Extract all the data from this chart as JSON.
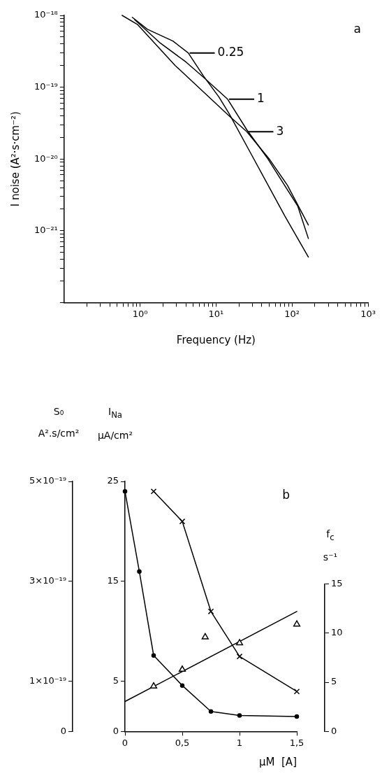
{
  "chart_data": [
    {
      "type": "line",
      "xlabel": "Frequency (Hz)",
      "ylabel": "I noise (A²·s·cm⁻²)",
      "log": "xy",
      "xlim": [
        0.1,
        1000
      ],
      "ylim": [
        1e-22,
        1e-18
      ],
      "xticks": [
        {
          "value": 0.2,
          "label": null
        },
        {
          "value": 0.3,
          "label": null
        },
        {
          "value": 0.4,
          "label": null
        },
        {
          "value": 0.5,
          "label": null
        },
        {
          "value": 0.6,
          "label": null
        },
        {
          "value": 0.7,
          "label": null
        },
        {
          "value": 0.8,
          "label": null
        },
        {
          "value": 0.9,
          "label": null
        },
        {
          "value": 1,
          "label": "10⁰"
        },
        {
          "value": 2,
          "label": null
        },
        {
          "value": 3,
          "label": null
        },
        {
          "value": 4,
          "label": null
        },
        {
          "value": 5,
          "label": null
        },
        {
          "value": 6,
          "label": null
        },
        {
          "value": 7,
          "label": null
        },
        {
          "value": 8,
          "label": null
        },
        {
          "value": 9,
          "label": null
        },
        {
          "value": 10,
          "label": "10¹"
        },
        {
          "value": 20,
          "label": null
        },
        {
          "value": 30,
          "label": null
        },
        {
          "value": 40,
          "label": null
        },
        {
          "value": 50,
          "label": null
        },
        {
          "value": 60,
          "label": null
        },
        {
          "value": 70,
          "label": null
        },
        {
          "value": 80,
          "label": null
        },
        {
          "value": 90,
          "label": null
        },
        {
          "value": 100,
          "label": "10²"
        },
        {
          "value": 200,
          "label": null
        },
        {
          "value": 300,
          "label": null
        },
        {
          "value": 400,
          "label": null
        },
        {
          "value": 500,
          "label": null
        },
        {
          "value": 600,
          "label": null
        },
        {
          "value": 700,
          "label": null
        },
        {
          "value": 800,
          "label": null
        },
        {
          "value": 900,
          "label": null
        },
        {
          "value": 1000,
          "label": "10³"
        }
      ],
      "yticks": [
        {
          "value": 1e-22,
          "label": null
        },
        {
          "value": 2e-22,
          "label": null
        },
        {
          "value": 3e-22,
          "label": null
        },
        {
          "value": 4e-22,
          "label": null
        },
        {
          "value": 5e-22,
          "label": null
        },
        {
          "value": 6e-22,
          "label": null
        },
        {
          "value": 7e-22,
          "label": null
        },
        {
          "value": 8e-22,
          "label": null
        },
        {
          "value": 9e-22,
          "label": null
        },
        {
          "value": 1e-21,
          "label": "10⁻²¹"
        },
        {
          "value": 2e-21,
          "label": null
        },
        {
          "value": 3e-21,
          "label": null
        },
        {
          "value": 4e-21,
          "label": null
        },
        {
          "value": 5e-21,
          "label": null
        },
        {
          "value": 6e-21,
          "label": null
        },
        {
          "value": 7e-21,
          "label": null
        },
        {
          "value": 8e-21,
          "label": null
        },
        {
          "value": 9e-21,
          "label": null
        },
        {
          "value": 1e-20,
          "label": "10⁻²⁰"
        },
        {
          "value": 2e-20,
          "label": null
        },
        {
          "value": 3e-20,
          "label": null
        },
        {
          "value": 4e-20,
          "label": null
        },
        {
          "value": 5e-20,
          "label": null
        },
        {
          "value": 6e-20,
          "label": null
        },
        {
          "value": 7e-20,
          "label": null
        },
        {
          "value": 8e-20,
          "label": null
        },
        {
          "value": 9e-20,
          "label": null
        },
        {
          "value": 1e-19,
          "label": "10⁻¹⁹"
        },
        {
          "value": 2e-19,
          "label": null
        },
        {
          "value": 3e-19,
          "label": null
        },
        {
          "value": 4e-19,
          "label": null
        },
        {
          "value": 5e-19,
          "label": null
        },
        {
          "value": 6e-19,
          "label": null
        },
        {
          "value": 7e-19,
          "label": null
        },
        {
          "value": 8e-19,
          "label": null
        },
        {
          "value": 9e-19,
          "label": null
        },
        {
          "value": 1e-18,
          "label": "10⁻¹⁸"
        }
      ],
      "annotations": [
        "a",
        {
          "text": "0.25",
          "x": 4.3,
          "y": 3e-19
        },
        {
          "text": "1",
          "x": 14.2,
          "y": 6.8e-20
        },
        {
          "text": "3",
          "x": 25.4,
          "y": 2.4e-20
        }
      ],
      "series": [
        {
          "color": "#000000",
          "x": [
            0.79,
            1.25,
            2.7,
            4.3,
            6.8,
            10.9,
            14.8,
            29.5,
            80.5,
            164
          ],
          "values": [
            9.4e-19,
            6.4e-19,
            4.4e-19,
            3e-19,
            1.44e-19,
            7.3e-20,
            4.3e-20,
            1.13e-20,
            1.6e-21,
            4.3e-22
          ]
        },
        {
          "color": "#000000",
          "x": [
            0.85,
            1.85,
            4.0,
            6.8,
            14.2,
            25.4,
            47,
            119,
            164
          ],
          "values": [
            8.7e-19,
            4.1e-19,
            2.25e-19,
            1.38e-19,
            6.8e-20,
            2.55e-20,
            1.04e-20,
            2.2e-21,
            7.8e-22
          ]
        },
        {
          "color": "#000000",
          "x": [
            0.58,
            0.92,
            2.9,
            14.8,
            25.4,
            50.8,
            87,
            164
          ],
          "values": [
            1e-18,
            7.5e-19,
            2e-19,
            4e-20,
            2.4e-20,
            9.8e-21,
            4.3e-21,
            1.2e-21
          ]
        }
      ]
    },
    {
      "type": "line",
      "xlabel": "μM  [A]",
      "ylabel": "I$_{Na}$ μA/cm²",
      "y2label": "f$_{c}$ s⁻¹",
      "y3label": "S₀ A².s/cm²",
      "xlim": [
        0,
        1.5
      ],
      "xticks": [
        0,
        {
          "value": 0.5,
          "label": "0,5"
        },
        1,
        {
          "value": 1.5,
          "label": "1,5"
        }
      ],
      "ylim": [
        0,
        25
      ],
      "yticks": [
        0,
        5,
        15,
        25
      ],
      "y2lim": [
        0,
        15
      ],
      "y2ticks": [
        0,
        5,
        10,
        15
      ],
      "y3lim": [
        0,
        5e-19
      ],
      "y3ticks": [
        0,
        {
          "value": 1e-19,
          "label": "1×10⁻¹⁹"
        },
        {
          "value": 3e-19,
          "label": "3×10⁻¹⁹"
        },
        {
          "value": 5e-19,
          "label": "5×10⁻¹⁹"
        }
      ],
      "annotations": [
        "b"
      ],
      "series": [
        {
          "axis": "y",
          "marker": "circle",
          "color": "#000000",
          "x": [
            0,
            0.125,
            0.25,
            0.5,
            0.75,
            1,
            1.5
          ],
          "values": [
            24,
            16,
            7.6,
            4.6,
            2.0,
            1.6,
            1.5
          ]
        },
        {
          "axis": "y3",
          "marker": "cross",
          "color": "#000000",
          "x": [
            0.25,
            0.5,
            0.75,
            1,
            1.5
          ],
          "values": [
            4.8e-19,
            4.2e-19,
            2.4e-19,
            1.5e-19,
            8e-20
          ]
        },
        {
          "type": "scatter",
          "axis": "y2",
          "marker": "triangle",
          "color": "#000000",
          "x": [
            0.25,
            0.5,
            0.7,
            1,
            1.5
          ],
          "values": [
            4.6,
            6.3,
            9.6,
            9.0,
            10.9
          ]
        },
        {
          "axis": "y2",
          "color": "#000000",
          "x": [
            0,
            1.5
          ],
          "values": [
            3.05,
            12.2
          ]
        }
      ]
    }
  ]
}
